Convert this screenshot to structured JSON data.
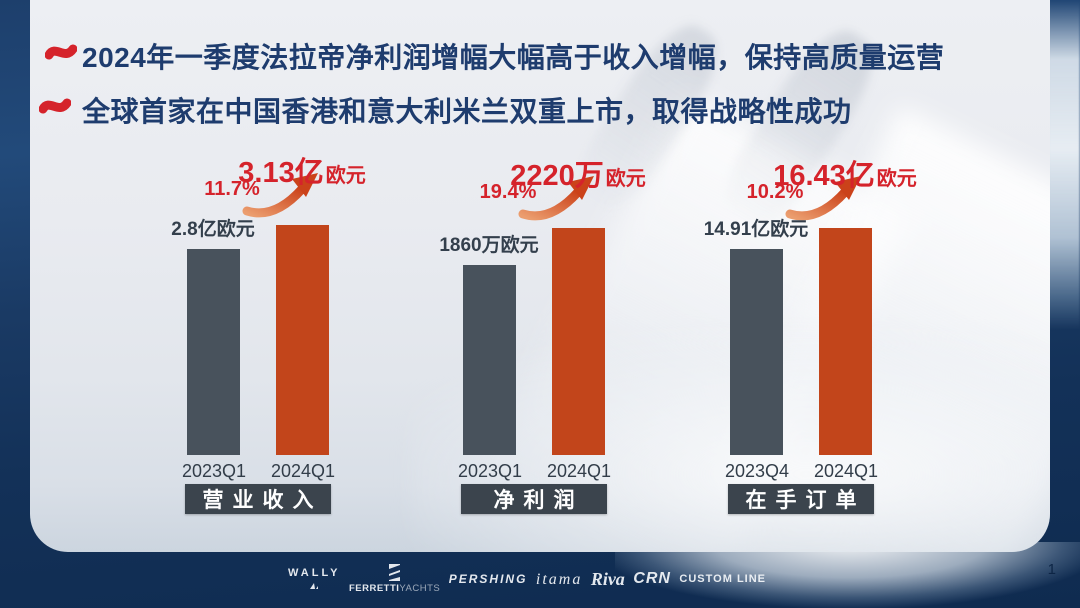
{
  "header": {
    "lines": [
      "2024年一季度法拉帝净利润增幅大幅高于收入增幅，保持高质量运营",
      "全球首家在中国香港和意大利米兰双重上市，取得战略性成功"
    ]
  },
  "chart_data": [
    {
      "type": "bar",
      "title": "营业收入",
      "categories": [
        "2023Q1",
        "2024Q1"
      ],
      "series": [
        {
          "name": "营业收入",
          "values": [
            2.8,
            3.13
          ]
        }
      ],
      "unit": "亿欧元",
      "prev_label": "2.8亿欧元",
      "curr_value": "3.13亿",
      "curr_unit": "欧元",
      "growth": "11.7%",
      "ylim": [
        0,
        3.2
      ],
      "bar_colors": [
        "#48525c",
        "#c2451b"
      ],
      "legend": "none",
      "grid": "off"
    },
    {
      "type": "bar",
      "title": "净利润",
      "categories": [
        "2023Q1",
        "2024Q1"
      ],
      "series": [
        {
          "name": "净利润",
          "values": [
            1860,
            2220
          ]
        }
      ],
      "unit": "万欧元",
      "prev_label": "1860万欧元",
      "curr_value": "2220万",
      "curr_unit": "欧元",
      "growth": "19.4%",
      "ylim": [
        0,
        2300
      ],
      "bar_colors": [
        "#48525c",
        "#c2451b"
      ],
      "legend": "none",
      "grid": "off"
    },
    {
      "type": "bar",
      "title": "在手订单",
      "categories": [
        "2023Q4",
        "2024Q1"
      ],
      "series": [
        {
          "name": "在手订单",
          "values": [
            14.91,
            16.43
          ]
        }
      ],
      "unit": "亿欧元",
      "prev_label": "14.91亿欧元",
      "curr_value": "16.43亿",
      "curr_unit": "欧元",
      "growth": "10.2%",
      "ylim": [
        0,
        17
      ],
      "bar_colors": [
        "#48525c",
        "#c2451b"
      ],
      "legend": "none",
      "grid": "off"
    }
  ],
  "footer": {
    "page_number": "1",
    "logos": [
      {
        "name": "WALLY"
      },
      {
        "name": "FERRETTI YACHTS",
        "parts": [
          "FERRETTI",
          "YACHTS"
        ]
      },
      {
        "name": "PERSHING"
      },
      {
        "name": "itama"
      },
      {
        "name": "Riva"
      },
      {
        "name": "CRN"
      },
      {
        "name": "CUSTOM LINE"
      }
    ]
  },
  "colors": {
    "accent_red": "#d5232b",
    "navy_text": "#1e3c6e",
    "bar_prev": "#48525c",
    "bar_curr": "#c2451b",
    "title_box_bg": "#3b444d",
    "arrow_tail": "#eb9d6e",
    "arrow_head": "#cb421a"
  }
}
